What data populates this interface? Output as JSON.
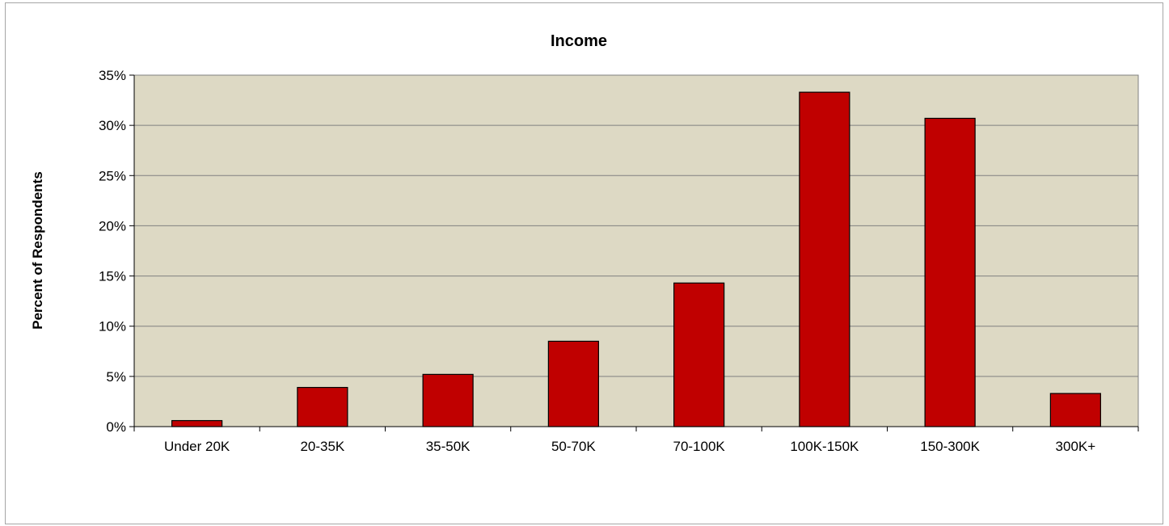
{
  "chart_data": {
    "type": "bar",
    "title": "Income",
    "xlabel": "",
    "ylabel": "Percent of Respondents",
    "categories": [
      "Under 20K",
      "20-35K",
      "35-50K",
      "50-70K",
      "70-100K",
      "100K-150K",
      "150-300K",
      "300K+"
    ],
    "values": [
      0.6,
      3.9,
      5.2,
      8.5,
      14.3,
      33.3,
      30.7,
      3.3
    ],
    "ylim": [
      0,
      35
    ],
    "yticks": [
      0,
      5,
      10,
      15,
      20,
      25,
      30,
      35
    ],
    "ytick_labels": [
      "0%",
      "5%",
      "10%",
      "15%",
      "20%",
      "25%",
      "30%",
      "35%"
    ],
    "grid": true,
    "legend": "none",
    "colors": {
      "bar": "#c00000",
      "plot_background": "#ddd9c4",
      "gridline": "#808080"
    }
  }
}
